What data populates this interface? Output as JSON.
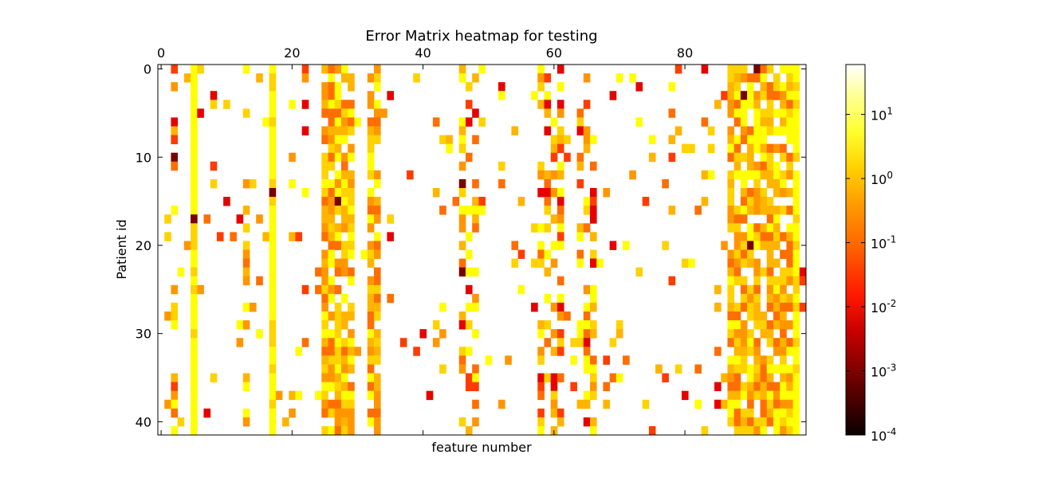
{
  "chart_data": {
    "type": "heatmap",
    "title": "Error Matrix heatmap for testing",
    "xlabel": "feature number",
    "ylabel": "Patient id",
    "x_ticks": [
      "0",
      "20",
      "40",
      "60",
      "80"
    ],
    "y_ticks": [
      "0",
      "10",
      "20",
      "30",
      "40"
    ],
    "n_rows": 42,
    "n_cols": 99,
    "xlim": [
      -0.5,
      98.5
    ],
    "ylim": [
      41.5,
      -0.5
    ],
    "xaxis_position": "top",
    "colormap": "hot",
    "color_scale": "log",
    "colorbar_range": [
      0.0001,
      60
    ],
    "colorbar_ticks": [
      "10",
      "10",
      "10",
      "10",
      "10",
      "10"
    ],
    "colorbar_tick_exponents": [
      "1",
      "0",
      "-1",
      "-2",
      "-3",
      "-4"
    ],
    "note_cells": "blank cells are values above ~10 (white); column bands with frequent small errors",
    "column_profiles": [
      {
        "cols": [
          2
        ],
        "level": "mid"
      },
      {
        "cols": [
          5
        ],
        "level": "low_band"
      },
      {
        "cols": [
          13
        ],
        "level": "sparse"
      },
      {
        "cols": [
          17
        ],
        "level": "band"
      },
      {
        "cols": [
          25,
          26,
          27,
          28,
          29
        ],
        "level": "dense"
      },
      {
        "cols": [
          32,
          33
        ],
        "level": "dense"
      },
      {
        "cols": [
          46,
          47,
          48
        ],
        "level": "mid"
      },
      {
        "cols": [
          58,
          59,
          60,
          61
        ],
        "level": "mid"
      },
      {
        "cols": [
          64,
          65,
          66
        ],
        "level": "mid"
      },
      {
        "cols": [
          87,
          88,
          89,
          90,
          91,
          92,
          93,
          94,
          95,
          96
        ],
        "level": "dense"
      },
      {
        "cols": [
          97
        ],
        "level": "band"
      }
    ]
  }
}
